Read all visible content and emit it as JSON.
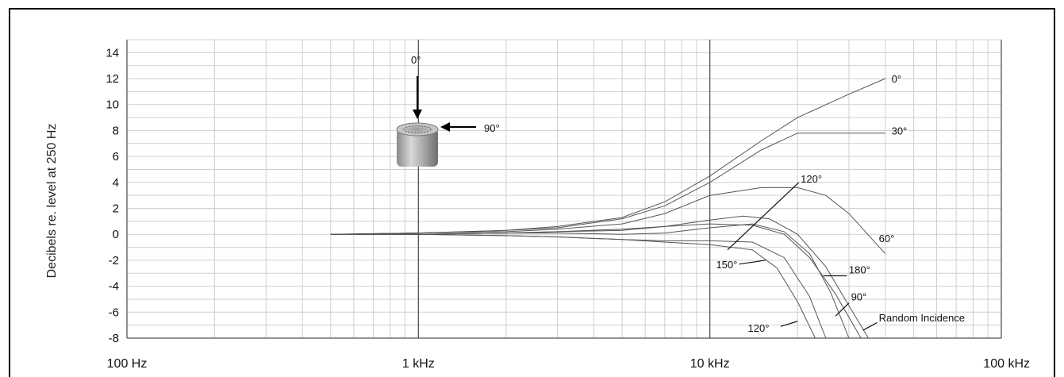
{
  "chart_data": {
    "type": "line",
    "title": "",
    "xlabel": "",
    "ylabel": "Decibels re. level at 250 Hz",
    "x_scale": "log",
    "xlim": [
      100,
      100000
    ],
    "ylim": [
      -8,
      15
    ],
    "x_ticks": [
      {
        "value": 100,
        "label": "100 Hz"
      },
      {
        "value": 1000,
        "label": "1 kHz"
      },
      {
        "value": 10000,
        "label": "10 kHz"
      },
      {
        "value": 100000,
        "label": "100 kHz"
      }
    ],
    "y_ticks": [
      {
        "value": 14,
        "label": "14"
      },
      {
        "value": 12,
        "label": "12"
      },
      {
        "value": 10,
        "label": "10"
      },
      {
        "value": 8,
        "label": "8"
      },
      {
        "value": 6,
        "label": "6"
      },
      {
        "value": 4,
        "label": "4"
      },
      {
        "value": 2,
        "label": "2"
      },
      {
        "value": 0,
        "label": "0"
      },
      {
        "value": -2,
        "label": "-2"
      },
      {
        "value": -4,
        "label": "-4"
      },
      {
        "value": -6,
        "label": "-6"
      },
      {
        "value": -8,
        "label": "-8"
      }
    ],
    "grid": true,
    "series": [
      {
        "label": "0°",
        "x": [
          500,
          1000,
          2000,
          3000,
          5000,
          7000,
          10000,
          15000,
          20000,
          30000,
          40000
        ],
        "y": [
          0,
          0.1,
          0.3,
          0.6,
          1.3,
          2.5,
          4.5,
          7.2,
          9,
          10.8,
          12
        ]
      },
      {
        "label": "30°",
        "x": [
          500,
          1000,
          2000,
          3000,
          5000,
          7000,
          10000,
          15000,
          20000,
          30000,
          40000
        ],
        "y": [
          0,
          0.1,
          0.3,
          0.5,
          1.2,
          2.2,
          4,
          6.5,
          7.8,
          7.8,
          7.8
        ]
      },
      {
        "label": "60°",
        "x": [
          500,
          1000,
          2000,
          3000,
          5000,
          7000,
          10000,
          15000,
          20000,
          25000,
          30000,
          40000
        ],
        "y": [
          0,
          0.1,
          0.2,
          0.4,
          0.8,
          1.6,
          3,
          3.6,
          3.6,
          3,
          1.6,
          -1.5
        ]
      },
      {
        "label": "90°",
        "x": [
          500,
          1000,
          2000,
          3000,
          5000,
          7000,
          10000,
          13000,
          16000,
          20000,
          25000,
          30000,
          35000
        ],
        "y": [
          0,
          0,
          0.1,
          0.2,
          0.3,
          0.6,
          1.1,
          1.4,
          1.2,
          0,
          -2.5,
          -5.5,
          -8
        ]
      },
      {
        "label": "180°",
        "x": [
          500,
          1000,
          2000,
          3000,
          5000,
          7000,
          10000,
          14000,
          18000,
          22000,
          26000,
          30000
        ],
        "y": [
          0,
          0,
          0.1,
          0.1,
          0,
          0.1,
          0.5,
          0.8,
          0.2,
          -1.5,
          -4.5,
          -8
        ]
      },
      {
        "label": "Random Incidence",
        "x": [
          500,
          1000,
          2000,
          3000,
          5000,
          7000,
          10000,
          14000,
          18000,
          22000,
          27000,
          33000
        ],
        "y": [
          0,
          0,
          0.1,
          0.2,
          0.4,
          0.6,
          0.8,
          0.7,
          0,
          -1.8,
          -4.6,
          -8
        ]
      },
      {
        "label": "120°",
        "x": [
          500,
          1000,
          2000,
          3000,
          5000,
          7000,
          10000,
          14000,
          18000,
          22000,
          25000
        ],
        "y": [
          0,
          0,
          -0.1,
          -0.2,
          -0.4,
          -0.5,
          -0.5,
          -0.6,
          -1.8,
          -4.8,
          -8
        ]
      },
      {
        "label": "150°",
        "x": [
          500,
          1000,
          2000,
          3000,
          5000,
          7000,
          10000,
          14000,
          17000,
          20000,
          23000
        ],
        "y": [
          0,
          0,
          -0.1,
          -0.2,
          -0.4,
          -0.6,
          -0.8,
          -1.2,
          -2.6,
          -5.2,
          -8
        ]
      }
    ],
    "annotations": [
      {
        "text": "0°",
        "x": 42000,
        "y": 12
      },
      {
        "text": "30°",
        "x": 42000,
        "y": 8
      },
      {
        "text": "120°",
        "x": 20500,
        "y": 4.3
      },
      {
        "text": "60°",
        "x": 38000,
        "y": -0.3
      },
      {
        "text": "150°",
        "x": 10500,
        "y": -2.3
      },
      {
        "text": "180°",
        "x": 30000,
        "y": -2.7
      },
      {
        "text": "90°",
        "x": 30500,
        "y": -4.8
      },
      {
        "text": "Random Incidence",
        "x": 38000,
        "y": -6.4
      },
      {
        "text": "120°",
        "x": 13500,
        "y": -7.2
      }
    ],
    "inset": {
      "arrow_top_label": "0°",
      "arrow_side_label": "90°"
    }
  }
}
